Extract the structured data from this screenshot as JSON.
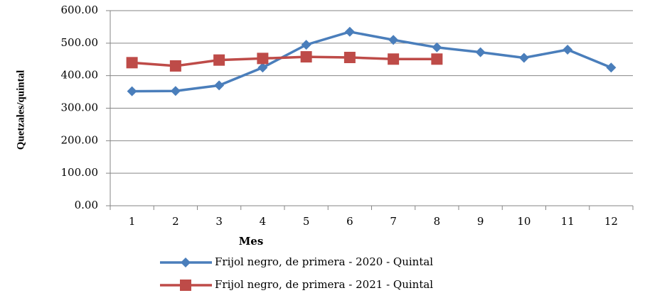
{
  "chart_data": {
    "type": "line",
    "y_label": "Quetzales/quintal",
    "x_label": "Mes",
    "categories": [
      "1",
      "2",
      "3",
      "4",
      "5",
      "6",
      "7",
      "8",
      "9",
      "10",
      "11",
      "12"
    ],
    "series": [
      {
        "name": "Frijol negro, de primera - 2020 - Quintal",
        "color": "#4a7ebb",
        "marker": "diamond",
        "values": [
          352,
          353,
          370,
          425,
          495,
          535,
          510,
          487,
          472,
          455,
          480,
          425
        ]
      },
      {
        "name": "Frijol negro, de primera - 2021 - Quintal",
        "color": "#be4b48",
        "marker": "square",
        "values": [
          440,
          430,
          448,
          453,
          458,
          456,
          451,
          451,
          null,
          null,
          null,
          null
        ]
      }
    ],
    "ylim": [
      0,
      600
    ],
    "yticks": [
      {
        "value": 0,
        "label": "0.00"
      },
      {
        "value": 100,
        "label": "100.00"
      },
      {
        "value": 200,
        "label": "200.00"
      },
      {
        "value": 300,
        "label": "300.00"
      },
      {
        "value": 400,
        "label": "400.00"
      },
      {
        "value": 500,
        "label": "500.00"
      },
      {
        "value": 600,
        "label": "600.00"
      }
    ],
    "grid": true,
    "legend": "bottom"
  }
}
